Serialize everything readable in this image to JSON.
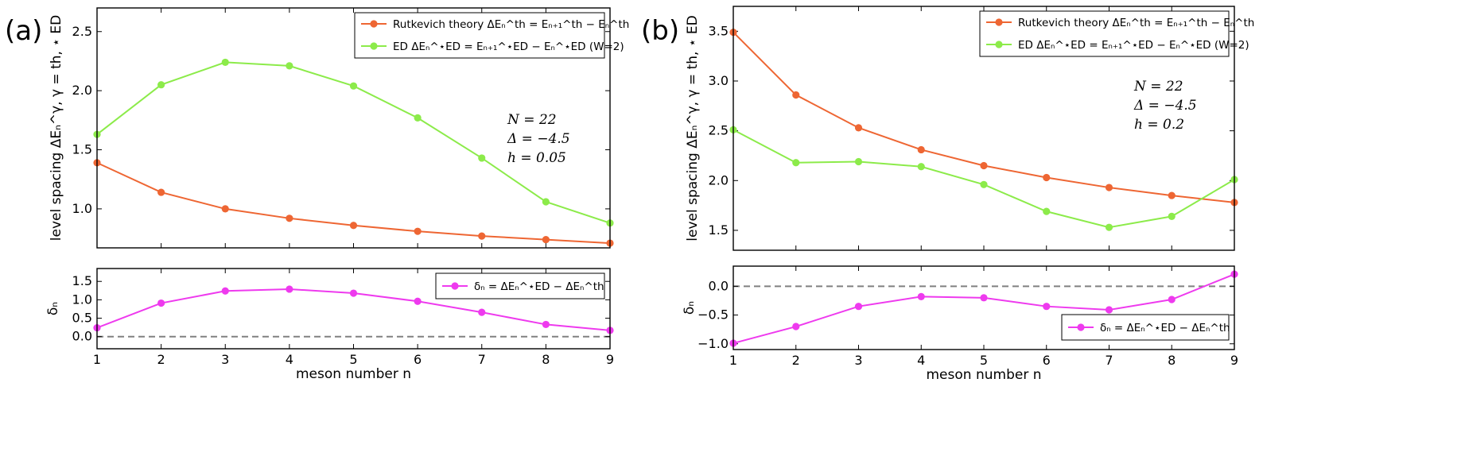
{
  "figure": {
    "colors": {
      "theory": "#EE6633",
      "ed": "#8CEB4A",
      "delta": "#EE3AEE",
      "zero_line": "#808080"
    }
  },
  "chart_data": [
    {
      "id": "a-top",
      "panel_label": "(a)",
      "type": "line",
      "xlabel": "",
      "ylabel": "level spacing ΔEₙ^γ, γ = th, ⋆ ED",
      "xlim": [
        1,
        9
      ],
      "ylim": [
        0.67,
        2.7
      ],
      "yticks": [
        1.0,
        1.5,
        2.0,
        2.5
      ],
      "ytick_labels": [
        "1.0",
        "1.5",
        "2.0",
        "2.5"
      ],
      "xticks": [
        1,
        2,
        3,
        4,
        5,
        6,
        7,
        8,
        9
      ],
      "legend_position": "top-right",
      "params": [
        "N = 22",
        "Δ = −4.5",
        "h = 0.05"
      ],
      "x": [
        1,
        2,
        3,
        4,
        5,
        6,
        7,
        8,
        9
      ],
      "series": [
        {
          "name": "Rutkevich theory ΔEₙ^th = Eₙ₊₁^th − Eₙ^th",
          "color_key": "theory",
          "values": [
            1.39,
            1.14,
            1.0,
            0.92,
            0.86,
            0.81,
            0.77,
            0.74,
            0.71
          ]
        },
        {
          "name": "ED ΔEₙ^⋆ED = Eₙ₊₁^⋆ED − Eₙ^⋆ED (W=2)",
          "color_key": "ed",
          "values": [
            1.63,
            2.05,
            2.24,
            2.21,
            2.04,
            1.77,
            1.43,
            1.06,
            0.88
          ]
        }
      ]
    },
    {
      "id": "a-bottom",
      "type": "line",
      "xlabel": "meson number n",
      "ylabel": "δₙ",
      "xlim": [
        1,
        9
      ],
      "ylim": [
        -0.33,
        1.85
      ],
      "yticks": [
        0.0,
        0.5,
        1.0,
        1.5
      ],
      "ytick_labels": [
        "0.0",
        "0.5",
        "1.0",
        "1.5"
      ],
      "xticks": [
        1,
        2,
        3,
        4,
        5,
        6,
        7,
        8,
        9
      ],
      "xtick_labels": [
        "1",
        "2",
        "3",
        "4",
        "5",
        "6",
        "7",
        "8",
        "9"
      ],
      "reference_line": 0,
      "legend_position": "top-right",
      "x": [
        1,
        2,
        3,
        4,
        5,
        6,
        7,
        8,
        9
      ],
      "series": [
        {
          "name": "δₙ = ΔEₙ^⋆ED − ΔEₙ^th",
          "color_key": "delta",
          "values": [
            0.24,
            0.91,
            1.24,
            1.29,
            1.18,
            0.96,
            0.66,
            0.33,
            0.17
          ]
        }
      ]
    },
    {
      "id": "b-top",
      "panel_label": "(b)",
      "type": "line",
      "xlabel": "",
      "ylabel": "level spacing ΔEₙ^γ, γ = th, ⋆ ED",
      "xlim": [
        1,
        9
      ],
      "ylim": [
        1.3,
        3.75
      ],
      "yticks": [
        1.5,
        2.0,
        2.5,
        3.0,
        3.5
      ],
      "ytick_labels": [
        "1.5",
        "2.0",
        "2.5",
        "3.0",
        "3.5"
      ],
      "xticks": [
        1,
        2,
        3,
        4,
        5,
        6,
        7,
        8,
        9
      ],
      "legend_position": "top-right",
      "params": [
        "N = 22",
        "Δ = −4.5",
        "h = 0.2"
      ],
      "x": [
        1,
        2,
        3,
        4,
        5,
        6,
        7,
        8,
        9
      ],
      "series": [
        {
          "name": "Rutkevich theory ΔEₙ^th = Eₙ₊₁^th − Eₙ^th",
          "color_key": "theory",
          "values": [
            3.49,
            2.86,
            2.53,
            2.31,
            2.15,
            2.03,
            1.93,
            1.85,
            1.78
          ]
        },
        {
          "name": "ED ΔEₙ^⋆ED = Eₙ₊₁^⋆ED − Eₙ^⋆ED (W=2)",
          "color_key": "ed",
          "values": [
            2.51,
            2.18,
            2.19,
            2.14,
            1.96,
            1.69,
            1.53,
            1.64,
            2.01
          ]
        }
      ]
    },
    {
      "id": "b-bottom",
      "type": "line",
      "xlabel": "meson number n",
      "ylabel": "δₙ",
      "xlim": [
        1,
        9
      ],
      "ylim": [
        -1.1,
        0.35
      ],
      "yticks": [
        -1.0,
        -0.5,
        0.0
      ],
      "ytick_labels": [
        "−1.0",
        "−0.5",
        "0.0"
      ],
      "xticks": [
        1,
        2,
        3,
        4,
        5,
        6,
        7,
        8,
        9
      ],
      "xtick_labels": [
        "1",
        "2",
        "3",
        "4",
        "5",
        "6",
        "7",
        "8",
        "9"
      ],
      "reference_line": 0,
      "legend_position": "bottom-right",
      "x": [
        1,
        2,
        3,
        4,
        5,
        6,
        7,
        8,
        9
      ],
      "series": [
        {
          "name": "δₙ = ΔEₙ^⋆ED − ΔEₙ^th",
          "color_key": "delta",
          "values": [
            -0.99,
            -0.7,
            -0.35,
            -0.18,
            -0.2,
            -0.35,
            -0.41,
            -0.23,
            0.21
          ]
        }
      ]
    }
  ]
}
